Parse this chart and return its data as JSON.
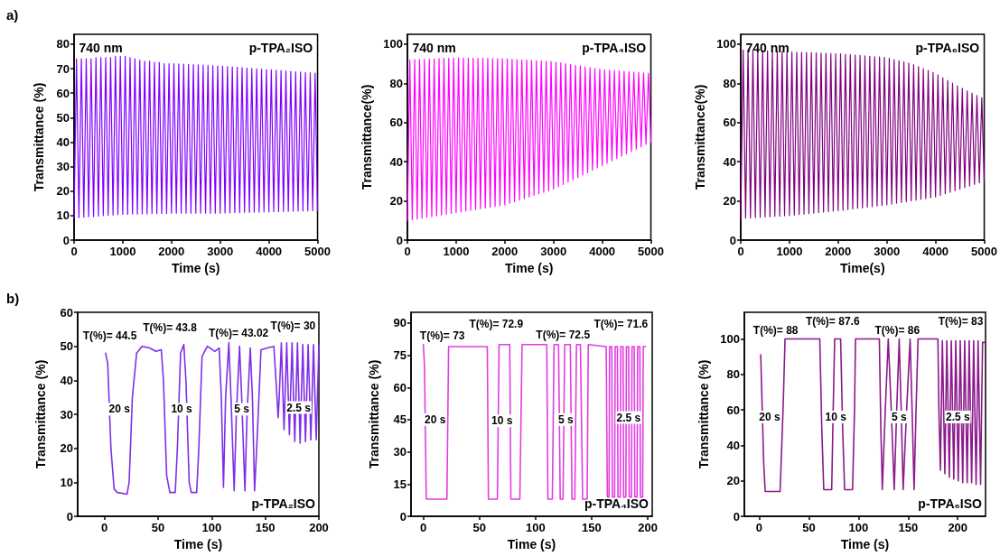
{
  "chart_data": [
    {
      "type": "line",
      "title": "a)",
      "xlabel": "Time (s)",
      "ylabel": "Transmittance (%)",
      "xlim": [
        0,
        5000
      ],
      "xticks": [
        0,
        1000,
        2000,
        3000,
        4000,
        5000
      ],
      "ylim": [
        0,
        84
      ],
      "yticks": [
        0,
        10,
        20,
        30,
        40,
        50,
        60,
        70,
        80
      ],
      "marker": "none",
      "line_style": "solid",
      "annotations": [
        "740 nm",
        "p-TPA₂ISO"
      ],
      "x": [
        0,
        50,
        100,
        150,
        200,
        250,
        300,
        350,
        400,
        450,
        500,
        550,
        600,
        650,
        700,
        750,
        800,
        850,
        900,
        950,
        1000,
        1050,
        1100,
        1150,
        1200,
        1250,
        1300,
        1350,
        1400,
        1450,
        1500,
        1550,
        1600,
        1650,
        1700,
        1750,
        1800,
        1850,
        1900,
        1950,
        2000,
        2050,
        2100,
        2150,
        2200,
        2250,
        2300,
        2350,
        2400,
        2450,
        2500,
        2550,
        2600,
        2650,
        2700,
        2750,
        2800,
        2850,
        2900,
        2950,
        3000,
        3050,
        3100,
        3150,
        3200,
        3250,
        3300,
        3350,
        3400,
        3450,
        3500,
        3550,
        3600,
        3650,
        3700,
        3750,
        3800,
        3850,
        3900,
        3950,
        4000,
        4050,
        4100,
        4150,
        4200,
        4250,
        4300,
        4350,
        4400,
        4450,
        4500,
        4550,
        4600,
        4650,
        4700,
        4750,
        4800,
        4850,
        4900,
        4950,
        5000
      ],
      "series": [
        {
          "color": "#8000ff",
          "values": [
            9,
            74,
            9.2,
            74,
            9.3,
            74,
            9.5,
            74,
            9.6,
            74.5,
            9.8,
            74.5,
            10,
            74.5,
            10.1,
            74.5,
            10.2,
            75,
            10.4,
            75,
            10.5,
            75,
            10.5,
            74.5,
            10.6,
            74,
            10.6,
            73.5,
            10.7,
            73,
            10.7,
            73,
            10.8,
            72.5,
            10.8,
            72.5,
            10.9,
            72,
            10.9,
            72,
            11,
            72,
            11,
            71.9,
            11,
            71.8,
            11,
            71.7,
            11,
            71.6,
            11,
            71.5,
            11,
            71.4,
            11,
            71.3,
            11,
            71.2,
            11,
            71.1,
            11,
            71,
            11.1,
            70.8,
            11.1,
            70.7,
            11.2,
            70.5,
            11.2,
            70.4,
            11.3,
            70.2,
            11.3,
            70.1,
            11.4,
            69.9,
            11.4,
            69.8,
            11.5,
            69.6,
            11.5,
            69.5,
            11.6,
            69.3,
            11.6,
            69.2,
            11.7,
            69,
            11.7,
            68.9,
            11.8,
            68.7,
            11.8,
            68.6,
            11.9,
            68.4,
            11.9,
            68.3,
            12,
            68.1,
            12
          ]
        }
      ]
    },
    {
      "type": "line",
      "xlabel": "Time (s)",
      "ylabel": "Transmittance(%)",
      "xlim": [
        0,
        5000
      ],
      "xticks": [
        0,
        1000,
        2000,
        3000,
        4000,
        5000
      ],
      "ylim": [
        0,
        105
      ],
      "yticks": [
        0,
        20,
        40,
        60,
        80,
        100
      ],
      "marker": "none",
      "line_style": "solid",
      "annotations": [
        "740 nm",
        "p-TPA₄ISO"
      ],
      "x": [
        0,
        50,
        100,
        150,
        200,
        250,
        300,
        350,
        400,
        450,
        500,
        550,
        600,
        650,
        700,
        750,
        800,
        850,
        900,
        950,
        1000,
        1050,
        1100,
        1150,
        1200,
        1250,
        1300,
        1350,
        1400,
        1450,
        1500,
        1550,
        1600,
        1650,
        1700,
        1750,
        1800,
        1850,
        1900,
        1950,
        2000,
        2050,
        2100,
        2150,
        2200,
        2250,
        2300,
        2350,
        2400,
        2450,
        2500,
        2550,
        2600,
        2650,
        2700,
        2750,
        2800,
        2850,
        2900,
        2950,
        3000,
        3050,
        3100,
        3150,
        3200,
        3250,
        3300,
        3350,
        3400,
        3450,
        3500,
        3550,
        3600,
        3650,
        3700,
        3750,
        3800,
        3850,
        3900,
        3950,
        4000,
        4050,
        4100,
        4150,
        4200,
        4250,
        4300,
        4350,
        4400,
        4450,
        4500,
        4550,
        4600,
        4650,
        4700,
        4750,
        4800,
        4850,
        4900,
        4950,
        5000
      ],
      "series": [
        {
          "color": "#ff00ff",
          "values": [
            10,
            92,
            10.4,
            92.1,
            10.8,
            92.2,
            11.2,
            92.3,
            11.6,
            92.4,
            12,
            92.5,
            12.4,
            92.6,
            12.8,
            92.7,
            13.2,
            92.8,
            13.6,
            92.9,
            14,
            93,
            14.4,
            92.9,
            14.8,
            92.9,
            15.2,
            92.8,
            15.6,
            92.8,
            16,
            92.7,
            16.4,
            92.7,
            16.8,
            92.6,
            17.2,
            92.6,
            17.6,
            92.5,
            18,
            92.4,
            18.8,
            92.3,
            19.6,
            92.1,
            20.4,
            92,
            21.2,
            91.8,
            22,
            91.7,
            22.8,
            91.5,
            23.6,
            91.4,
            24.4,
            91.2,
            25.2,
            91.1,
            26,
            90.8,
            27.2,
            90.4,
            28.4,
            90,
            29.6,
            89.6,
            30.8,
            89.2,
            32,
            88.8,
            33.2,
            88.4,
            34.4,
            88,
            35.6,
            87.6,
            36.8,
            87.2,
            38,
            86.9,
            39.2,
            86.7,
            40.4,
            86.5,
            41.6,
            86.3,
            42.8,
            86.1,
            44,
            85.9,
            45.2,
            85.7,
            46.4,
            85.5,
            47.6,
            85.3,
            48.8,
            85.1,
            50
          ]
        }
      ]
    },
    {
      "type": "line",
      "xlabel": "Time(s)",
      "ylabel": "Transmittance(%)",
      "xlim": [
        0,
        5000
      ],
      "xticks": [
        0,
        1000,
        2000,
        3000,
        4000,
        5000
      ],
      "ylim": [
        0,
        105
      ],
      "yticks": [
        0,
        20,
        40,
        60,
        80,
        100
      ],
      "marker": "none",
      "line_style": "solid",
      "annotations": [
        "740 nm",
        "p-TPA₆ISO"
      ],
      "x": [
        0,
        50,
        100,
        150,
        200,
        250,
        300,
        350,
        400,
        450,
        500,
        550,
        600,
        650,
        700,
        750,
        800,
        850,
        900,
        950,
        1000,
        1050,
        1100,
        1150,
        1200,
        1250,
        1300,
        1350,
        1400,
        1450,
        1500,
        1550,
        1600,
        1650,
        1700,
        1750,
        1800,
        1850,
        1900,
        1950,
        2000,
        2050,
        2100,
        2150,
        2200,
        2250,
        2300,
        2350,
        2400,
        2450,
        2500,
        2550,
        2600,
        2650,
        2700,
        2750,
        2800,
        2850,
        2900,
        2950,
        3000,
        3050,
        3100,
        3150,
        3200,
        3250,
        3300,
        3350,
        3400,
        3450,
        3500,
        3550,
        3600,
        3650,
        3700,
        3750,
        3800,
        3850,
        3900,
        3950,
        4000,
        4050,
        4100,
        4150,
        4200,
        4250,
        4300,
        4350,
        4400,
        4450,
        4500,
        4550,
        4600,
        4650,
        4700,
        4750,
        4800,
        4850,
        4900,
        4950,
        5000
      ],
      "series": [
        {
          "color": "#800080",
          "values": [
            11,
            97,
            11.2,
            96.9,
            11.3,
            96.8,
            11.5,
            96.7,
            11.6,
            96.6,
            11.8,
            96.5,
            11.9,
            96.4,
            12.1,
            96.3,
            12.2,
            96.2,
            12.4,
            96.1,
            12.5,
            96,
            12.8,
            95.9,
            13,
            95.8,
            13.3,
            95.7,
            13.5,
            95.6,
            13.8,
            95.5,
            14,
            95.4,
            14.3,
            95.3,
            14.5,
            95.2,
            14.8,
            95.1,
            15,
            95,
            15.3,
            94.8,
            15.6,
            94.6,
            15.9,
            94.4,
            16.2,
            94.2,
            16.5,
            94,
            16.8,
            93.8,
            17.1,
            93.6,
            17.4,
            93.4,
            17.7,
            93.2,
            18,
            92.7,
            18.4,
            92.1,
            18.8,
            91.5,
            19.2,
            90.9,
            19.6,
            90.3,
            20,
            89.5,
            20.4,
            88.5,
            20.8,
            87.5,
            21.2,
            86.5,
            21.6,
            85.5,
            22,
            84.3,
            22.8,
            82.9,
            23.6,
            81.5,
            24.4,
            80.1,
            25.2,
            78.7,
            26,
            77.4,
            26.8,
            76.2,
            27.6,
            75,
            28.4,
            73.8,
            29.2,
            72.6,
            30
          ]
        }
      ]
    },
    {
      "type": "line",
      "title": "b)",
      "xlabel": "Time (s)",
      "ylabel": "Transmittance (%)",
      "xlim": [
        -25,
        200
      ],
      "xticks": [
        0,
        50,
        100,
        150,
        200
      ],
      "ylim": [
        0,
        60
      ],
      "yticks": [
        0,
        10,
        20,
        30,
        40,
        50,
        60
      ],
      "marker": "none",
      "line_style": "solid",
      "annotations": [
        "T(%)= 44.5",
        "T(%)= 43.8",
        "T(%)= 43.02",
        "T(%)= 30",
        "20 s",
        "10 s",
        "5 s",
        "2.5 s",
        "p-TPA₂ISO"
      ],
      "x": [
        1,
        3,
        6,
        9,
        12,
        21,
        23,
        26,
        30,
        35,
        42,
        48,
        53,
        55,
        58,
        61,
        66,
        68,
        71,
        74,
        76,
        79,
        81,
        86,
        88,
        91,
        96,
        103,
        107,
        109,
        111,
        113,
        116,
        118,
        121,
        123,
        126,
        128,
        131,
        133,
        136,
        138,
        140,
        142,
        146,
        152,
        158,
        160,
        162,
        163,
        165,
        167.5,
        170,
        172.5,
        175,
        177.5,
        180,
        182.5,
        185,
        187.5,
        190,
        192.5,
        195,
        197.5,
        200
      ],
      "series": [
        {
          "color": "#7f2fe6",
          "values": [
            48,
            45,
            20,
            8,
            7,
            6.5,
            10,
            35,
            48,
            50,
            49.5,
            48.5,
            49,
            40,
            12,
            7,
            7,
            20,
            48,
            50.5,
            40,
            10,
            7,
            7,
            20,
            47,
            50,
            48.5,
            49.5,
            35,
            8.5,
            35,
            51,
            35,
            7.5,
            30,
            50,
            35,
            7.5,
            30,
            49.5,
            35,
            7.5,
            20,
            49,
            49.5,
            50,
            40,
            29,
            35,
            51,
            25.5,
            51,
            24,
            51,
            22,
            51,
            21.5,
            50.5,
            22,
            50.5,
            22.5,
            50.5,
            22.5,
            50.5
          ]
        }
      ]
    },
    {
      "type": "line",
      "xlabel": "Time (s)",
      "ylabel": "Transmittance (%)",
      "xlim": [
        -11,
        204
      ],
      "xticks": [
        0,
        50,
        100,
        150,
        200
      ],
      "ylim": [
        0,
        95
      ],
      "yticks": [
        0,
        15,
        30,
        45,
        60,
        75,
        90
      ],
      "marker": "none",
      "line_style": "solid",
      "annotations": [
        "T(%)= 73",
        "T(%)= 72.9",
        "T(%)= 72.5",
        "T(%)= 71.6",
        "20 s",
        "10 s",
        "5 s",
        "2.5 s",
        "p-TPA₄ISO"
      ],
      "x": [
        0,
        1,
        2.6,
        21,
        22.5,
        57,
        58,
        66,
        67.5,
        77,
        78,
        86,
        88,
        110,
        111,
        115,
        116.5,
        120.5,
        122,
        124.5,
        126,
        131,
        132.5,
        135,
        136.5,
        140,
        142,
        146,
        147,
        163,
        164,
        165.5,
        166,
        168,
        168.5,
        170.5,
        171,
        173,
        173.5,
        175.5,
        176,
        178,
        178.5,
        180.5,
        181,
        183,
        183.5,
        185.5,
        186,
        188,
        188.5,
        190.5,
        191,
        193,
        193.5,
        195.5,
        196,
        198
      ],
      "series": [
        {
          "color": "#e23de2",
          "values": [
            80,
            70,
            8,
            8,
            79,
            79,
            8,
            8,
            80,
            80,
            8,
            8,
            80,
            80,
            8,
            8,
            80,
            80,
            8,
            8,
            80,
            80,
            8,
            8,
            80,
            80,
            8,
            8,
            80,
            79,
            9,
            9,
            79,
            79,
            9,
            9,
            79,
            79,
            9,
            9,
            79,
            79,
            9,
            9,
            79,
            79,
            9,
            9,
            79,
            79,
            9,
            9,
            79,
            79,
            9,
            9,
            79,
            79
          ]
        }
      ]
    },
    {
      "type": "line",
      "xlabel": "Time (s)",
      "ylabel": "Transmittance (%)",
      "xlim": [
        -15,
        228
      ],
      "xticks": [
        0,
        50,
        100,
        150,
        200
      ],
      "ylim": [
        0,
        115
      ],
      "yticks": [
        0,
        20,
        40,
        60,
        80,
        100
      ],
      "marker": "none",
      "line_style": "solid",
      "annotations": [
        "T(%)= 88",
        "T(%)= 87.6",
        "T(%)= 86",
        "T(%)= 83",
        "20 s",
        "10 s",
        "5 s",
        "2.5 s",
        "p-TPA₆ISO"
      ],
      "x": [
        1.5,
        4.5,
        6,
        21,
        24,
        26,
        61,
        63,
        65,
        73,
        74.5,
        76,
        82,
        84,
        86,
        94,
        96,
        97,
        121,
        122.5,
        124,
        127,
        130,
        133,
        136,
        138.5,
        141,
        143,
        145,
        148.5,
        152,
        154,
        156,
        158,
        160,
        180,
        181,
        182.5,
        184.5,
        187,
        189,
        191.5,
        193.5,
        196,
        198,
        200.5,
        202.5,
        205,
        207,
        209.5,
        211.5,
        214,
        216,
        218.5,
        220.5,
        223,
        225,
        227
      ],
      "series": [
        {
          "color": "#8b1a8b",
          "values": [
            91,
            30,
            14,
            14,
            60,
            100,
            100,
            50,
            15,
            15,
            60,
            100,
            100,
            50,
            15,
            15,
            60,
            100,
            100,
            50,
            15,
            60,
            100,
            60,
            15,
            60,
            100,
            60,
            15,
            60,
            100,
            60,
            15,
            60,
            100,
            100,
            60,
            26,
            99,
            24,
            99,
            22,
            99,
            21,
            99,
            20,
            99,
            19,
            99,
            19,
            99,
            19,
            99,
            18,
            99,
            18,
            98,
            98
          ]
        }
      ]
    }
  ]
}
